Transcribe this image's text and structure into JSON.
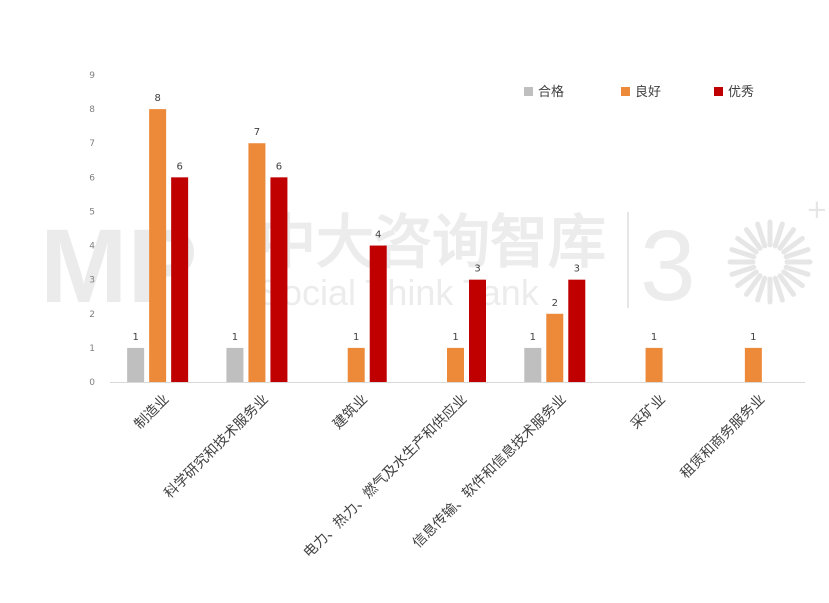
{
  "watermark": {
    "logo_text": "MP",
    "title": "中大咨询智库",
    "subtitle": "Social Think Tank",
    "number": "3"
  },
  "chart_data": {
    "type": "bar",
    "categories": [
      "制造业",
      "科学研究和技术服务业",
      "建筑业",
      "电力、热力、燃气及水生产和供应业",
      "信息传输、软件和信息技术服务业",
      "采矿业",
      "租赁和商务服务业"
    ],
    "series": [
      {
        "name": "合格",
        "color": "#bfbfbf",
        "values": [
          1,
          1,
          null,
          null,
          1,
          null,
          null
        ]
      },
      {
        "name": "良好",
        "color": "#ed8a3a",
        "values": [
          8,
          7,
          1,
          1,
          2,
          1,
          1
        ]
      },
      {
        "name": "优秀",
        "color": "#c00000",
        "values": [
          6,
          6,
          4,
          3,
          3,
          null,
          null
        ]
      }
    ],
    "ylim": [
      0,
      9
    ],
    "yticks": [
      0,
      1,
      2,
      3,
      4,
      5,
      6,
      7,
      8,
      9
    ],
    "legend_position": "top-right",
    "grid": false
  }
}
